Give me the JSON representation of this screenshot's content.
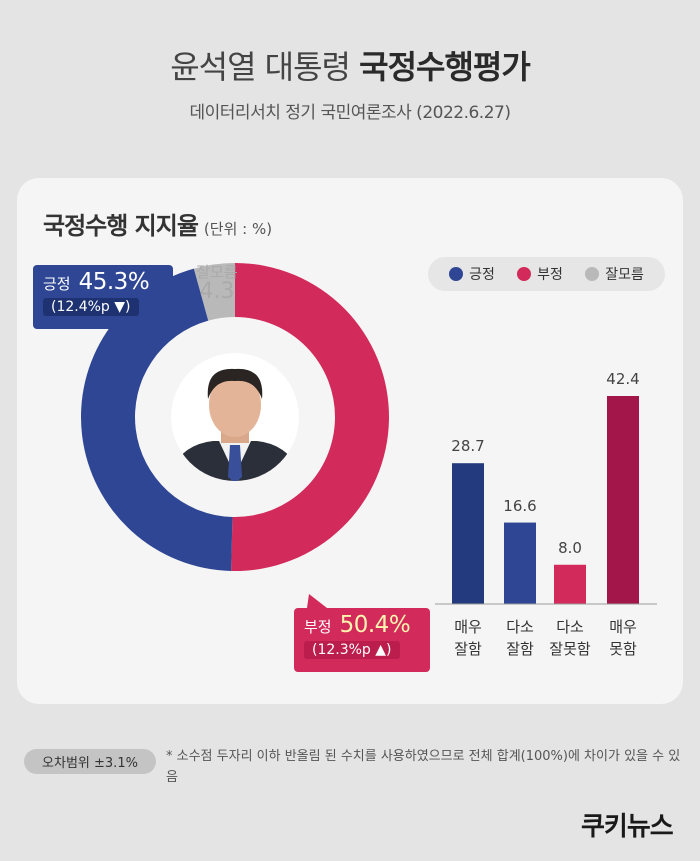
{
  "header": {
    "title_light": "윤석열 대통령",
    "title_bold": "국정수행평가",
    "subtitle": "데이터리서치 정기 국민여론조사 (2022.6.27)"
  },
  "card": {
    "title": "국정수행 지지율",
    "unit": "(단위 : %)"
  },
  "legend": [
    {
      "label": "긍정",
      "color": "#2e4694"
    },
    {
      "label": "부정",
      "color": "#d22a5b"
    },
    {
      "label": "잘모름",
      "color": "#b9b9b9"
    }
  ],
  "callouts": {
    "positive": {
      "label": "긍정",
      "value": "45.3%",
      "change": "(12.4%p ▼)"
    },
    "negative": {
      "label": "부정",
      "value": "50.4%",
      "change": "(12.3%p ▲)"
    },
    "unknown": {
      "label": "잘모름",
      "value": "4.3"
    }
  },
  "chart_data": [
    {
      "type": "pie",
      "categories": [
        "긍정",
        "부정",
        "잘모름"
      ],
      "values": [
        45.3,
        50.4,
        4.3
      ],
      "colors": [
        "#2e4694",
        "#d22a5b",
        "#b9b9b9"
      ]
    },
    {
      "type": "bar",
      "categories": [
        [
          "매우",
          "잘함"
        ],
        [
          "다소",
          "잘함"
        ],
        [
          "다소",
          "잘못함"
        ],
        [
          "매우",
          "못함"
        ]
      ],
      "values": [
        28.7,
        16.6,
        8.0,
        42.4
      ],
      "value_labels": [
        "28.7",
        "16.6",
        "8.0",
        "42.4"
      ],
      "colors": [
        "#233a7e",
        "#2e4694",
        "#d22a5b",
        "#a3164a"
      ]
    }
  ],
  "note": {
    "badge": "오차범위 ±3.1%",
    "text": "* 소수점 두자리 이하 반올림 된 수치를 사용하였으므로 전체 합계(100%)에 차이가 있을 수 있음"
  },
  "logo": "쿠키뉴스"
}
